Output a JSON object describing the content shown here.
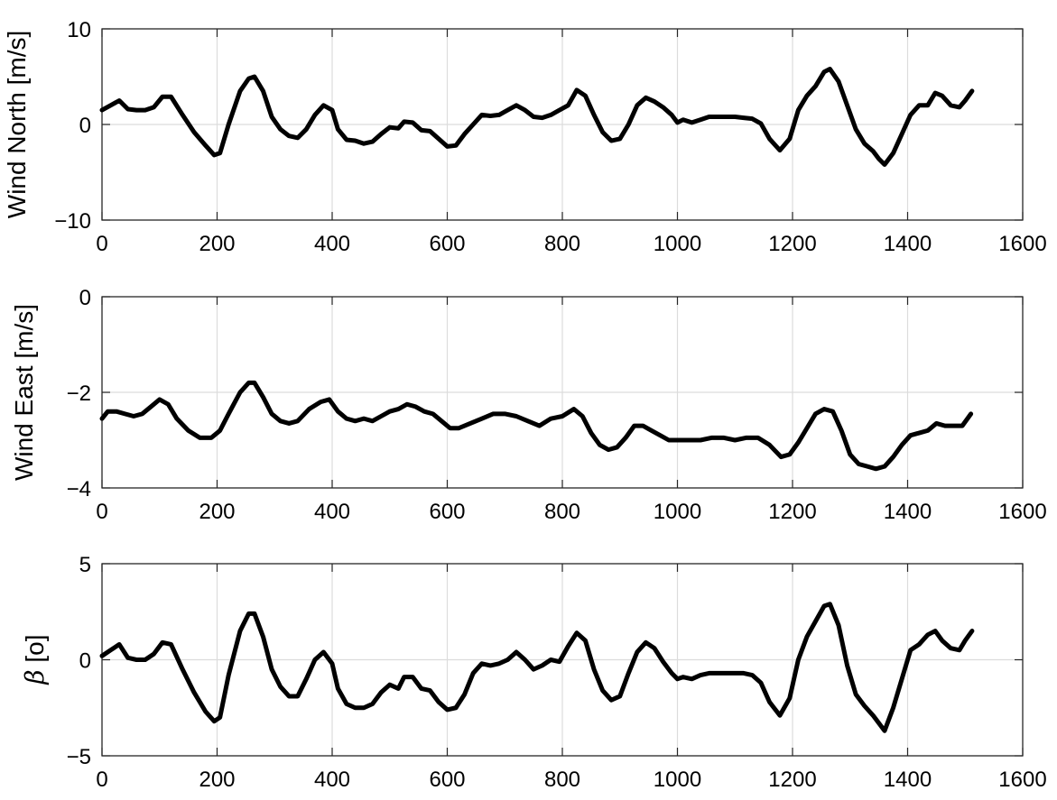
{
  "chart_data": [
    {
      "type": "line",
      "title": "",
      "xlabel": "",
      "ylabel": "Wind North [m/s]",
      "xlim": [
        0,
        1600
      ],
      "ylim": [
        -10,
        10
      ],
      "xticks": [
        "0",
        "200",
        "400",
        "600",
        "800",
        "1000",
        "1200",
        "1400",
        "1600"
      ],
      "yticks": [
        "−10",
        "0",
        "10"
      ],
      "grid": true,
      "line_color": "#000000",
      "series": [
        {
          "x": [
            0,
            15,
            30,
            45,
            60,
            75,
            90,
            105,
            120,
            140,
            160,
            180,
            195,
            205,
            220,
            240,
            255,
            265,
            280,
            295,
            310,
            325,
            340,
            355,
            370,
            385,
            400,
            410,
            425,
            440,
            455,
            470,
            485,
            500,
            515,
            525,
            540,
            555,
            570,
            585,
            600,
            615,
            630,
            645,
            660,
            675,
            690,
            705,
            720,
            735,
            750,
            765,
            780,
            795,
            810,
            825,
            840,
            855,
            870,
            885,
            900,
            915,
            930,
            945,
            960,
            975,
            990,
            1000,
            1010,
            1025,
            1040,
            1055,
            1070,
            1085,
            1100,
            1115,
            1130,
            1145,
            1160,
            1178,
            1195,
            1210,
            1225,
            1240,
            1255,
            1265,
            1280,
            1295,
            1310,
            1325,
            1340,
            1350,
            1360,
            1375,
            1390,
            1405,
            1420,
            1435,
            1448,
            1460,
            1475,
            1490,
            1500,
            1512
          ],
          "y": [
            1.5,
            2.0,
            2.5,
            1.6,
            1.5,
            1.5,
            1.8,
            2.9,
            2.9,
            1.0,
            -0.8,
            -2.2,
            -3.2,
            -3.0,
            0.0,
            3.5,
            4.8,
            5.0,
            3.5,
            0.8,
            -0.5,
            -1.2,
            -1.4,
            -0.5,
            1.0,
            2.0,
            1.5,
            -0.5,
            -1.6,
            -1.7,
            -2.0,
            -1.8,
            -1.0,
            -0.3,
            -0.4,
            0.3,
            0.2,
            -0.6,
            -0.7,
            -1.5,
            -2.3,
            -2.2,
            -1.0,
            0.0,
            1.0,
            0.9,
            1.0,
            1.5,
            2.0,
            1.5,
            0.8,
            0.7,
            1.0,
            1.5,
            2.0,
            3.6,
            3.0,
            1.0,
            -0.8,
            -1.7,
            -1.5,
            0.0,
            2.0,
            2.8,
            2.4,
            1.8,
            1.0,
            0.2,
            0.5,
            0.2,
            0.5,
            0.8,
            0.8,
            0.8,
            0.8,
            0.7,
            0.6,
            0.1,
            -1.5,
            -2.7,
            -1.5,
            1.5,
            3.0,
            4.0,
            5.5,
            5.8,
            4.5,
            2.0,
            -0.5,
            -2.0,
            -2.8,
            -3.6,
            -4.2,
            -3.0,
            -1.0,
            1.0,
            2.0,
            2.0,
            3.3,
            3.0,
            2.0,
            1.8,
            2.5,
            3.5
          ]
        }
      ]
    },
    {
      "type": "line",
      "title": "",
      "xlabel": "",
      "ylabel": "Wind East [m/s]",
      "xlim": [
        0,
        1600
      ],
      "ylim": [
        -4,
        0
      ],
      "xticks": [
        "0",
        "200",
        "400",
        "600",
        "800",
        "1000",
        "1200",
        "1400",
        "1600"
      ],
      "yticks": [
        "−4",
        "−2",
        "0"
      ],
      "grid": true,
      "line_color": "#000000",
      "series": [
        {
          "x": [
            0,
            10,
            25,
            40,
            55,
            70,
            85,
            100,
            115,
            130,
            150,
            170,
            190,
            205,
            220,
            240,
            255,
            265,
            280,
            295,
            310,
            325,
            340,
            360,
            380,
            395,
            410,
            425,
            440,
            455,
            470,
            485,
            500,
            515,
            530,
            545,
            560,
            575,
            590,
            605,
            620,
            640,
            660,
            680,
            700,
            720,
            740,
            760,
            780,
            800,
            820,
            835,
            850,
            865,
            880,
            895,
            910,
            925,
            940,
            955,
            970,
            985,
            1000,
            1020,
            1040,
            1060,
            1080,
            1100,
            1120,
            1140,
            1160,
            1180,
            1195,
            1210,
            1225,
            1240,
            1255,
            1270,
            1285,
            1300,
            1315,
            1330,
            1345,
            1360,
            1375,
            1390,
            1405,
            1420,
            1435,
            1450,
            1465,
            1480,
            1495,
            1510
          ],
          "y": [
            -2.55,
            -2.4,
            -2.4,
            -2.45,
            -2.5,
            -2.45,
            -2.3,
            -2.15,
            -2.25,
            -2.55,
            -2.8,
            -2.95,
            -2.95,
            -2.8,
            -2.45,
            -2.0,
            -1.8,
            -1.8,
            -2.1,
            -2.45,
            -2.6,
            -2.65,
            -2.6,
            -2.35,
            -2.2,
            -2.15,
            -2.4,
            -2.55,
            -2.6,
            -2.55,
            -2.6,
            -2.5,
            -2.4,
            -2.35,
            -2.25,
            -2.3,
            -2.4,
            -2.45,
            -2.6,
            -2.75,
            -2.75,
            -2.65,
            -2.55,
            -2.45,
            -2.45,
            -2.5,
            -2.6,
            -2.7,
            -2.55,
            -2.5,
            -2.35,
            -2.5,
            -2.85,
            -3.1,
            -3.2,
            -3.15,
            -2.95,
            -2.7,
            -2.7,
            -2.8,
            -2.9,
            -3.0,
            -3.0,
            -3.0,
            -3.0,
            -2.95,
            -2.95,
            -3.0,
            -2.95,
            -2.95,
            -3.1,
            -3.35,
            -3.3,
            -3.05,
            -2.75,
            -2.45,
            -2.35,
            -2.4,
            -2.8,
            -3.3,
            -3.5,
            -3.55,
            -3.6,
            -3.55,
            -3.35,
            -3.1,
            -2.9,
            -2.85,
            -2.8,
            -2.65,
            -2.7,
            -2.7,
            -2.7,
            -2.45
          ]
        }
      ]
    },
    {
      "type": "line",
      "title": "",
      "xlabel": "",
      "ylabel": "β [o]",
      "xlim": [
        0,
        1600
      ],
      "ylim": [
        -5,
        5
      ],
      "xticks": [
        "0",
        "200",
        "400",
        "600",
        "800",
        "1000",
        "1200",
        "1400",
        "1600"
      ],
      "yticks": [
        "−5",
        "0",
        "5"
      ],
      "grid": true,
      "line_color": "#000000",
      "series": [
        {
          "x": [
            0,
            15,
            30,
            45,
            60,
            75,
            90,
            105,
            120,
            140,
            160,
            180,
            195,
            205,
            220,
            240,
            255,
            265,
            280,
            295,
            310,
            325,
            340,
            355,
            370,
            385,
            400,
            410,
            425,
            440,
            455,
            470,
            485,
            500,
            515,
            525,
            540,
            555,
            570,
            585,
            600,
            615,
            630,
            645,
            660,
            675,
            690,
            705,
            720,
            735,
            750,
            765,
            780,
            795,
            810,
            825,
            840,
            855,
            870,
            885,
            900,
            915,
            930,
            945,
            960,
            975,
            990,
            1000,
            1010,
            1025,
            1040,
            1055,
            1070,
            1085,
            1100,
            1115,
            1130,
            1145,
            1160,
            1178,
            1195,
            1210,
            1225,
            1240,
            1255,
            1265,
            1280,
            1295,
            1310,
            1325,
            1340,
            1350,
            1360,
            1375,
            1390,
            1405,
            1420,
            1435,
            1448,
            1460,
            1475,
            1490,
            1500,
            1512
          ],
          "y": [
            0.2,
            0.5,
            0.8,
            0.1,
            0.0,
            0.0,
            0.3,
            0.9,
            0.8,
            -0.5,
            -1.7,
            -2.7,
            -3.2,
            -3.0,
            -0.8,
            1.5,
            2.4,
            2.4,
            1.2,
            -0.5,
            -1.4,
            -1.9,
            -1.9,
            -1.0,
            0.0,
            0.4,
            -0.2,
            -1.5,
            -2.3,
            -2.5,
            -2.5,
            -2.3,
            -1.7,
            -1.3,
            -1.5,
            -0.9,
            -0.9,
            -1.5,
            -1.6,
            -2.2,
            -2.6,
            -2.5,
            -1.8,
            -0.7,
            -0.2,
            -0.3,
            -0.2,
            0.0,
            0.4,
            0.0,
            -0.5,
            -0.3,
            0.0,
            -0.1,
            0.7,
            1.4,
            1.0,
            -0.5,
            -1.6,
            -2.1,
            -1.9,
            -0.7,
            0.4,
            0.9,
            0.6,
            -0.1,
            -0.7,
            -1.0,
            -0.9,
            -1.0,
            -0.8,
            -0.7,
            -0.7,
            -0.7,
            -0.7,
            -0.7,
            -0.8,
            -1.2,
            -2.2,
            -2.9,
            -2.0,
            0.0,
            1.2,
            2.0,
            2.8,
            2.9,
            1.8,
            -0.3,
            -1.8,
            -2.4,
            -2.9,
            -3.3,
            -3.7,
            -2.5,
            -1.0,
            0.5,
            0.8,
            1.3,
            1.5,
            1.0,
            0.6,
            0.5,
            1.0,
            1.5
          ]
        }
      ]
    }
  ]
}
